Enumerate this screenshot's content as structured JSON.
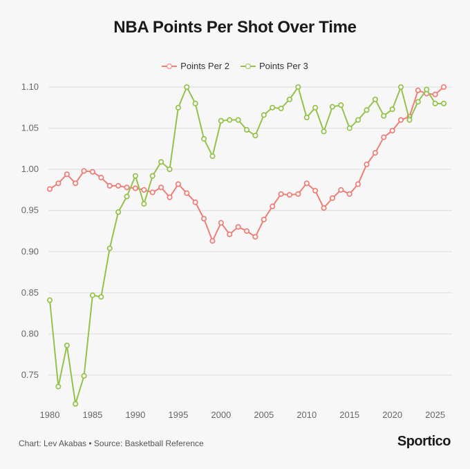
{
  "chart_data": {
    "type": "line",
    "title": "NBA Points Per Shot Over Time",
    "xlabel": "",
    "ylabel": "",
    "xlim": [
      1980,
      2026
    ],
    "ylim": [
      0.7,
      1.12
    ],
    "x_ticks": [
      1980,
      1985,
      1990,
      1995,
      2000,
      2005,
      2010,
      2015,
      2020,
      2025
    ],
    "y_ticks": [
      0.75,
      0.8,
      0.85,
      0.9,
      0.95,
      1.0,
      1.05,
      1.1
    ],
    "y_tick_labels": [
      "0.75",
      "0.80",
      "0.85",
      "0.90",
      "0.95",
      "1.00",
      "1.05",
      "1.10"
    ],
    "grid": "horizontal",
    "legend_position": "top-center",
    "x": [
      1980,
      1981,
      1982,
      1983,
      1984,
      1985,
      1986,
      1987,
      1988,
      1989,
      1990,
      1991,
      1992,
      1993,
      1994,
      1995,
      1996,
      1997,
      1998,
      1999,
      2000,
      2001,
      2002,
      2003,
      2004,
      2005,
      2006,
      2007,
      2008,
      2009,
      2010,
      2011,
      2012,
      2013,
      2014,
      2015,
      2016,
      2017,
      2018,
      2019,
      2020,
      2021,
      2022,
      2023,
      2024,
      2025,
      2026
    ],
    "series": [
      {
        "name": "Points Per 2",
        "color": "#ee7d77",
        "values": [
          0.976,
          0.983,
          0.994,
          0.983,
          0.998,
          0.997,
          0.99,
          0.98,
          0.98,
          0.978,
          0.977,
          0.975,
          0.972,
          0.978,
          0.966,
          0.982,
          0.971,
          0.96,
          0.94,
          0.913,
          0.935,
          0.921,
          0.93,
          0.925,
          0.918,
          0.939,
          0.955,
          0.97,
          0.969,
          0.97,
          0.983,
          0.974,
          0.953,
          0.965,
          0.975,
          0.97,
          0.982,
          1.006,
          1.02,
          1.039,
          1.047,
          1.06,
          1.064,
          1.096,
          1.092,
          1.091,
          1.1
        ]
      },
      {
        "name": "Points Per 3",
        "color": "#93c24b",
        "values": [
          0.841,
          0.736,
          0.786,
          0.715,
          0.749,
          0.847,
          0.845,
          0.904,
          0.948,
          0.967,
          0.992,
          0.958,
          0.992,
          1.009,
          1.0,
          1.075,
          1.1,
          1.08,
          1.037,
          1.016,
          1.059,
          1.06,
          1.06,
          1.048,
          1.041,
          1.066,
          1.075,
          1.074,
          1.085,
          1.1,
          1.063,
          1.075,
          1.046,
          1.076,
          1.078,
          1.05,
          1.06,
          1.072,
          1.085,
          1.065,
          1.073,
          1.1,
          1.06,
          1.082,
          1.097,
          1.08,
          1.08
        ]
      }
    ]
  },
  "footer": {
    "credit": "Chart: Lev Akabas • Source: Basketball Reference",
    "brand": "Sportico"
  }
}
